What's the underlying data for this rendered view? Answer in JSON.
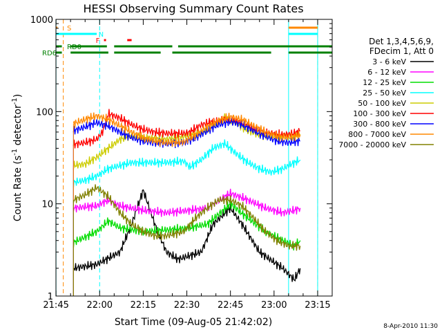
{
  "chart_data": {
    "type": "line",
    "title": "HESSI Observing Summary Count Rates",
    "xlabel": "Start Time (09-Aug-05 21:42:02)",
    "ylabel_main": "Count Rate (s",
    "ylabel_sup1": "-1",
    "ylabel_mid": " detector",
    "ylabel_sup2": "-1",
    "ylabel_end": ")",
    "y_scale": "log",
    "ylim": [
      1,
      1000
    ],
    "xlim_minutes": [
      -0.03,
      95.0
    ],
    "x_axis_units": "minutes after 21:45",
    "x_ticks": [
      {
        "min": 0,
        "label": "21:45"
      },
      {
        "min": 15,
        "label": "22:00"
      },
      {
        "min": 30,
        "label": "22:15"
      },
      {
        "min": 45,
        "label": "22:30"
      },
      {
        "min": 60,
        "label": "22:45"
      },
      {
        "min": 75,
        "label": "23:00"
      },
      {
        "min": 90,
        "label": "23:15"
      }
    ],
    "y_ticks": [
      {
        "value": 1,
        "label": "1"
      },
      {
        "value": 10,
        "label": "10"
      },
      {
        "value": 100,
        "label": "100"
      },
      {
        "value": 1000,
        "label": "1000"
      }
    ],
    "legend_header": [
      "Det 1,3,4,5,6,9,",
      "FDecim 1, Att 0"
    ],
    "legend_placement": "right",
    "series": [
      {
        "name": "3 - 6 keV",
        "color": "#000000",
        "points": [
          [
            6,
            2
          ],
          [
            14,
            2.2
          ],
          [
            22,
            3
          ],
          [
            26,
            6
          ],
          [
            30,
            14
          ],
          [
            34,
            6
          ],
          [
            38,
            3
          ],
          [
            42,
            2.5
          ],
          [
            50,
            3
          ],
          [
            54,
            6
          ],
          [
            60,
            9
          ],
          [
            64,
            6
          ],
          [
            70,
            3
          ],
          [
            78,
            2
          ],
          [
            82,
            1.5
          ],
          [
            84,
            2
          ]
        ]
      },
      {
        "name": "6 - 12 keV",
        "color": "#ff00ff",
        "points": [
          [
            6,
            9
          ],
          [
            14,
            9.5
          ],
          [
            18,
            11
          ],
          [
            22,
            9.5
          ],
          [
            30,
            8.5
          ],
          [
            38,
            8
          ],
          [
            46,
            8.5
          ],
          [
            52,
            9
          ],
          [
            60,
            13
          ],
          [
            66,
            11
          ],
          [
            72,
            9
          ],
          [
            78,
            8
          ],
          [
            82,
            8.5
          ],
          [
            84,
            9
          ]
        ]
      },
      {
        "name": "12 - 25 keV",
        "color": "#00dd00",
        "points": [
          [
            6,
            3.8
          ],
          [
            14,
            5
          ],
          [
            18,
            6.5
          ],
          [
            22,
            5.5
          ],
          [
            30,
            5
          ],
          [
            38,
            5.2
          ],
          [
            46,
            5.5
          ],
          [
            52,
            6
          ],
          [
            60,
            10
          ],
          [
            66,
            7
          ],
          [
            72,
            5
          ],
          [
            78,
            4
          ],
          [
            82,
            3.5
          ],
          [
            84,
            4
          ]
        ]
      },
      {
        "name": "25 - 50 keV",
        "color": "#00ffff",
        "points": [
          [
            6,
            17
          ],
          [
            10,
            18
          ],
          [
            14,
            20
          ],
          [
            18,
            24
          ],
          [
            22,
            26
          ],
          [
            26,
            28
          ],
          [
            30,
            28
          ],
          [
            38,
            28
          ],
          [
            44,
            29
          ],
          [
            46,
            25
          ],
          [
            50,
            30
          ],
          [
            54,
            40
          ],
          [
            58,
            45
          ],
          [
            62,
            35
          ],
          [
            66,
            28
          ],
          [
            70,
            24
          ],
          [
            74,
            22
          ],
          [
            78,
            24
          ],
          [
            82,
            28
          ],
          [
            84,
            30
          ]
        ]
      },
      {
        "name": "50 - 100 keV",
        "color": "#cccc00",
        "points": [
          [
            6,
            26
          ],
          [
            10,
            27
          ],
          [
            14,
            32
          ],
          [
            18,
            40
          ],
          [
            22,
            50
          ],
          [
            26,
            55
          ],
          [
            30,
            52
          ],
          [
            38,
            50
          ],
          [
            46,
            55
          ],
          [
            50,
            58
          ],
          [
            54,
            70
          ],
          [
            58,
            85
          ],
          [
            62,
            75
          ],
          [
            66,
            62
          ],
          [
            70,
            56
          ],
          [
            74,
            54
          ],
          [
            78,
            54
          ],
          [
            82,
            55
          ],
          [
            84,
            56
          ]
        ]
      },
      {
        "name": "100 - 300 keV",
        "color": "#ff0000",
        "points": [
          [
            6,
            44
          ],
          [
            10,
            46
          ],
          [
            14,
            50
          ],
          [
            16,
            60
          ],
          [
            18,
            95
          ],
          [
            22,
            85
          ],
          [
            26,
            72
          ],
          [
            30,
            64
          ],
          [
            34,
            60
          ],
          [
            38,
            58
          ],
          [
            44,
            58
          ],
          [
            46,
            60
          ],
          [
            50,
            72
          ],
          [
            54,
            78
          ],
          [
            58,
            82
          ],
          [
            62,
            80
          ],
          [
            66,
            70
          ],
          [
            70,
            62
          ],
          [
            74,
            58
          ],
          [
            78,
            56
          ],
          [
            82,
            58
          ],
          [
            84,
            62
          ]
        ]
      },
      {
        "name": "300 - 800 keV",
        "color": "#0000ff",
        "points": [
          [
            6,
            62
          ],
          [
            10,
            68
          ],
          [
            14,
            76
          ],
          [
            18,
            70
          ],
          [
            22,
            60
          ],
          [
            26,
            52
          ],
          [
            30,
            48
          ],
          [
            34,
            46
          ],
          [
            38,
            45
          ],
          [
            44,
            46
          ],
          [
            48,
            52
          ],
          [
            52,
            62
          ],
          [
            56,
            72
          ],
          [
            60,
            78
          ],
          [
            64,
            72
          ],
          [
            68,
            62
          ],
          [
            72,
            54
          ],
          [
            76,
            48
          ],
          [
            80,
            46
          ],
          [
            84,
            48
          ]
        ]
      },
      {
        "name": "800 - 7000 keV",
        "color": "#ff8800",
        "points": [
          [
            6,
            74
          ],
          [
            10,
            82
          ],
          [
            14,
            90
          ],
          [
            18,
            82
          ],
          [
            22,
            70
          ],
          [
            26,
            60
          ],
          [
            30,
            52
          ],
          [
            34,
            48
          ],
          [
            38,
            46
          ],
          [
            44,
            47
          ],
          [
            48,
            56
          ],
          [
            52,
            68
          ],
          [
            56,
            80
          ],
          [
            60,
            88
          ],
          [
            64,
            82
          ],
          [
            68,
            70
          ],
          [
            72,
            60
          ],
          [
            76,
            54
          ],
          [
            80,
            52
          ],
          [
            84,
            56
          ]
        ]
      },
      {
        "name": "7000 - 20000 keV",
        "color": "#808000",
        "points": [
          [
            6,
            11
          ],
          [
            10,
            12.5
          ],
          [
            14,
            15
          ],
          [
            18,
            12
          ],
          [
            22,
            8
          ],
          [
            26,
            6
          ],
          [
            30,
            5
          ],
          [
            34,
            4.5
          ],
          [
            38,
            4.5
          ],
          [
            44,
            5
          ],
          [
            48,
            7
          ],
          [
            52,
            9
          ],
          [
            56,
            11
          ],
          [
            60,
            11
          ],
          [
            64,
            9.5
          ],
          [
            68,
            7
          ],
          [
            72,
            5
          ],
          [
            76,
            4
          ],
          [
            80,
            3.5
          ],
          [
            84,
            3.5
          ]
        ]
      }
    ],
    "status_bars": [
      {
        "label": "S",
        "color": "#ff8800",
        "segments": [
          [
            -2,
            0.5
          ],
          [
            80,
            90
          ]
        ]
      },
      {
        "label": "N",
        "color": "#00ffff",
        "segments": [
          [
            -2,
            14
          ],
          [
            80,
            90
          ]
        ]
      },
      {
        "label": "F",
        "color": "#ff0000",
        "segments": [
          [
            16.5,
            17.2
          ],
          [
            24.5,
            26
          ]
        ]
      },
      {
        "label": "RD0",
        "color": "#008000",
        "segments": [
          [
            -2,
            2
          ],
          [
            5,
            17.5
          ],
          [
            20,
            40
          ],
          [
            42,
            95
          ]
        ]
      },
      {
        "label": "RD6",
        "color": "#008000",
        "segments": [
          [
            -2,
            2
          ],
          [
            5,
            18
          ],
          [
            20,
            36
          ],
          [
            40,
            74
          ],
          [
            80,
            95
          ]
        ]
      }
    ],
    "vertical_markers": [
      {
        "min": 0.0,
        "color": "#00ffff",
        "style": "solid"
      },
      {
        "min": 2.5,
        "color": "#ff8800",
        "style": "dashed"
      },
      {
        "min": 15.0,
        "color": "#00ffff",
        "style": "dashed"
      },
      {
        "min": 80.0,
        "color": "#00ffff",
        "style": "solid"
      },
      {
        "min": 90.0,
        "color": "#ff8800",
        "style": "dashed"
      },
      {
        "min": 90.0,
        "color": "#00ffff",
        "style": "solid"
      }
    ],
    "date_stamp": "8-Apr-2010 11:30"
  }
}
